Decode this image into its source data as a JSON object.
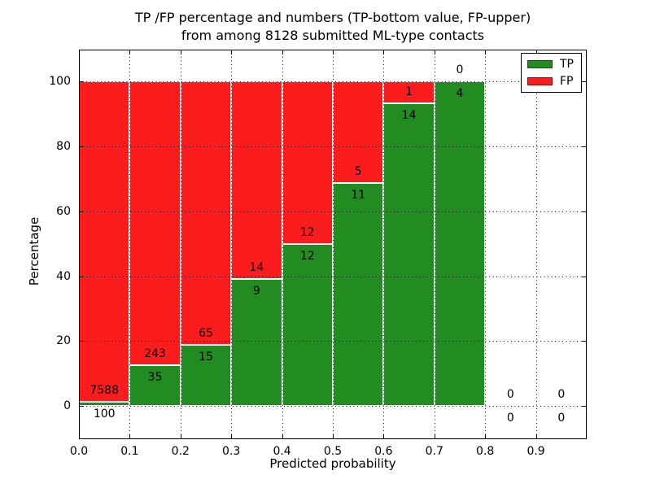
{
  "figure": {
    "title_line1": "TP /FP percentage and numbers (TP-bottom value, FP-upper)",
    "title_line2": "from among 8128 submitted ML-type contacts"
  },
  "chart_data": {
    "type": "bar",
    "stacked": true,
    "title": "TP /FP percentage and numbers (TP-bottom value, FP-upper) from among 8128 submitted ML-type contacts",
    "xlabel": "Predicted probability",
    "ylabel": "Percentage",
    "xlim": [
      0.0,
      1.0
    ],
    "ylim": [
      -10.3,
      109.9
    ],
    "grid": true,
    "legend_position": "upper right",
    "bin_edges": [
      0.0,
      0.1,
      0.2,
      0.3,
      0.4,
      0.5,
      0.6,
      0.7,
      0.8,
      0.9,
      1.0
    ],
    "x_ticks": [
      0.0,
      0.1,
      0.2,
      0.3,
      0.4,
      0.5,
      0.6,
      0.7,
      0.8,
      0.9
    ],
    "x_tick_labels": [
      "0.0",
      "0.1",
      "0.2",
      "0.3",
      "0.4",
      "0.5",
      "0.6",
      "0.7",
      "0.8",
      "0.9"
    ],
    "y_ticks": [
      0,
      20,
      40,
      60,
      80,
      100
    ],
    "y_tick_labels": [
      "0",
      "20",
      "40",
      "60",
      "80",
      "100"
    ],
    "annotation_scheme": "FP count printed above the TP/FP boundary, TP count printed below it",
    "total_contacts": 8128,
    "series": [
      {
        "name": "TP",
        "color": "#228b22",
        "counts": [
          100,
          35,
          15,
          9,
          12,
          11,
          14,
          4,
          0,
          0
        ],
        "pct": [
          1.3,
          12.59,
          18.75,
          39.13,
          50.0,
          68.75,
          93.33,
          100.0,
          0.0,
          0.0
        ]
      },
      {
        "name": "FP",
        "color": "#fb1d1d",
        "counts": [
          7588,
          243,
          65,
          14,
          12,
          5,
          1,
          0,
          0,
          0
        ],
        "pct": [
          98.7,
          87.41,
          81.25,
          60.87,
          50.0,
          31.25,
          6.67,
          0.0,
          0.0,
          0.0
        ]
      }
    ]
  }
}
